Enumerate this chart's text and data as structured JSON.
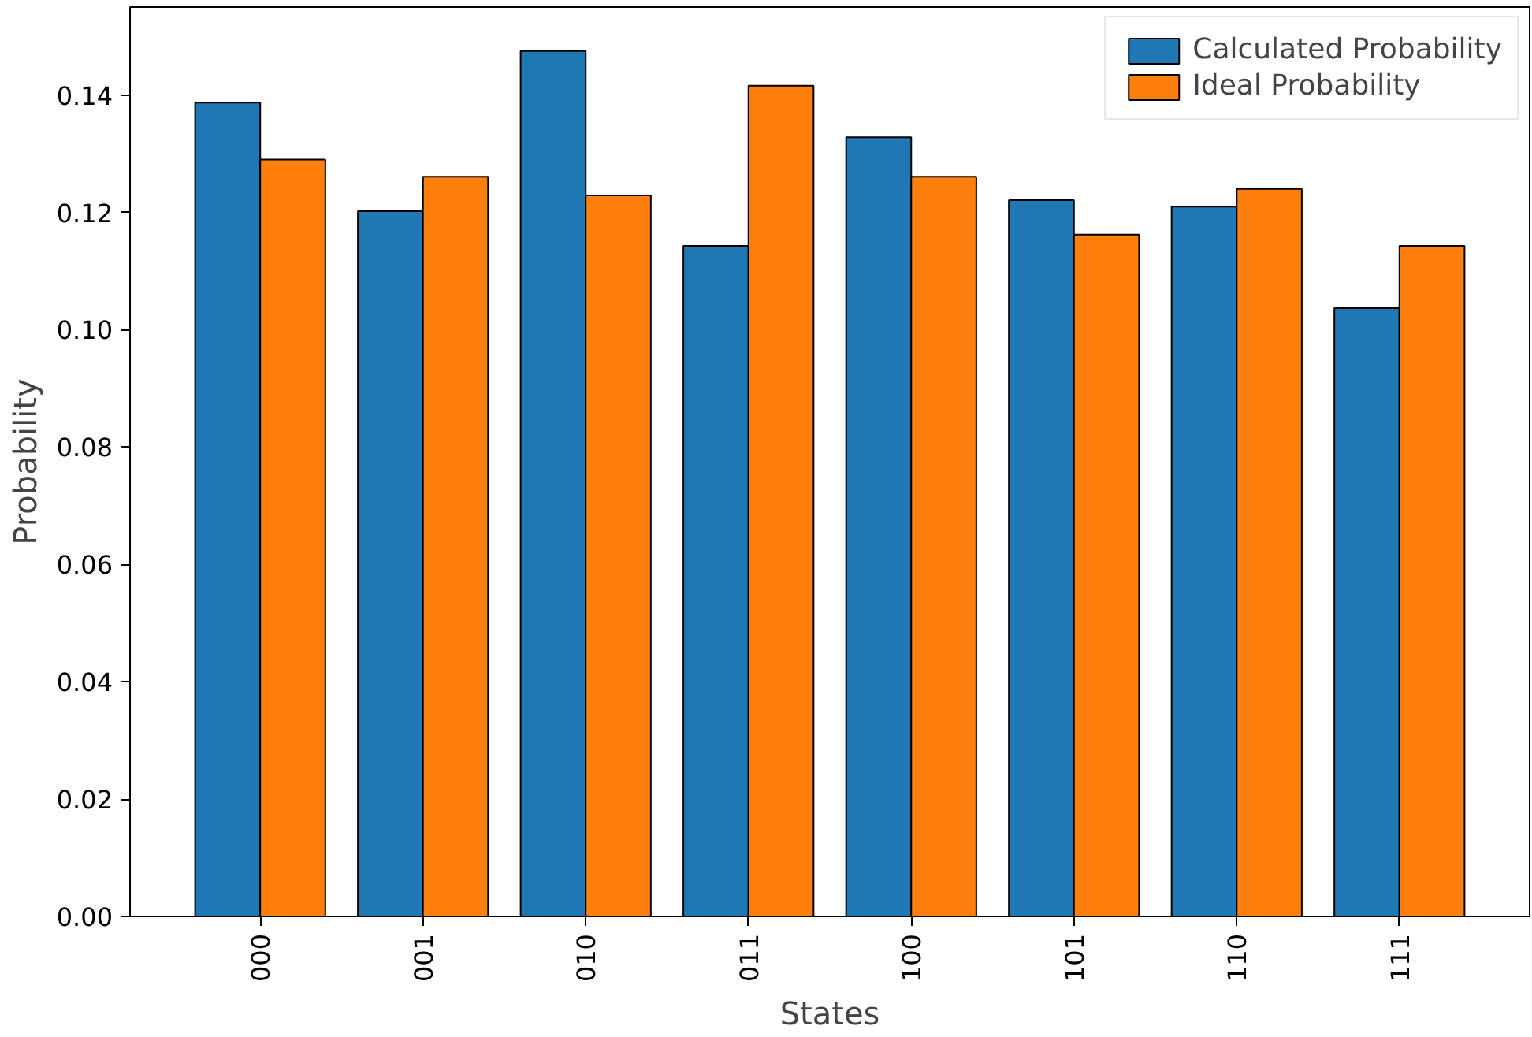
{
  "chart_data": {
    "type": "bar",
    "xlabel": "States",
    "ylabel": "Probability",
    "categories": [
      "000",
      "001",
      "010",
      "011",
      "100",
      "101",
      "110",
      "111"
    ],
    "series": [
      {
        "name": "Calculated Probability",
        "color": "#1f77b4",
        "values": [
          0.1387,
          0.1202,
          0.1475,
          0.1143,
          0.1328,
          0.1221,
          0.121,
          0.1037
        ]
      },
      {
        "name": "Ideal Probability",
        "color": "#ff7f0e",
        "values": [
          0.129,
          0.1261,
          0.1229,
          0.1416,
          0.1261,
          0.1162,
          0.124,
          0.1143
        ]
      }
    ],
    "ylim": [
      0,
      0.155
    ],
    "yticks": [
      {
        "value": 0,
        "label": "0.00"
      },
      {
        "value": 0.02,
        "label": "0.02"
      },
      {
        "value": 0.04,
        "label": "0.04"
      },
      {
        "value": 0.06,
        "label": "0.06"
      },
      {
        "value": 0.08,
        "label": "0.08"
      },
      {
        "value": 0.1,
        "label": "0.10"
      },
      {
        "value": 0.12,
        "label": "0.12"
      },
      {
        "value": 0.14,
        "label": "0.14"
      }
    ],
    "grid": false,
    "legend": "top right"
  }
}
